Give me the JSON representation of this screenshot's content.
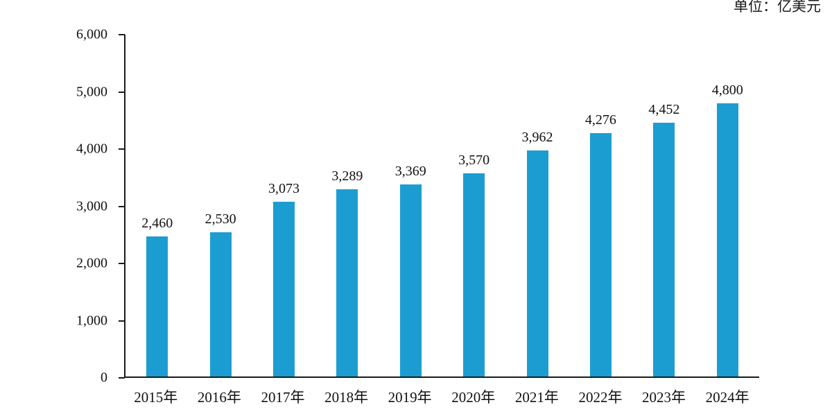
{
  "unit_label": "单位：亿美元",
  "colors": {
    "bar": "#1C9DD2",
    "axis": "#1a1a1a",
    "text": "#111111",
    "background": "#FFFFFF"
  },
  "chart_data": {
    "type": "bar",
    "categories": [
      "2015年",
      "2016年",
      "2017年",
      "2018年",
      "2019年",
      "2020年",
      "2021年",
      "2022年",
      "2023年",
      "2024年"
    ],
    "values": [
      2460,
      2530,
      3073,
      3289,
      3369,
      3570,
      3962,
      4276,
      4452,
      4800
    ],
    "data_labels": [
      "2,460",
      "2,530",
      "3,073",
      "3,289",
      "3,369",
      "3,570",
      "3,962",
      "4,276",
      "4,452",
      "4,800"
    ],
    "title": "",
    "xlabel": "",
    "ylabel": "",
    "unit": "单位：亿美元",
    "ylim": [
      0,
      6000
    ],
    "yticks": [
      0,
      1000,
      2000,
      3000,
      4000,
      5000,
      6000
    ],
    "ytick_labels": [
      "0",
      "1,000",
      "2,000",
      "3,000",
      "4,000",
      "5,000",
      "6,000"
    ],
    "grid": false,
    "legend": false,
    "show_data_labels": true
  }
}
